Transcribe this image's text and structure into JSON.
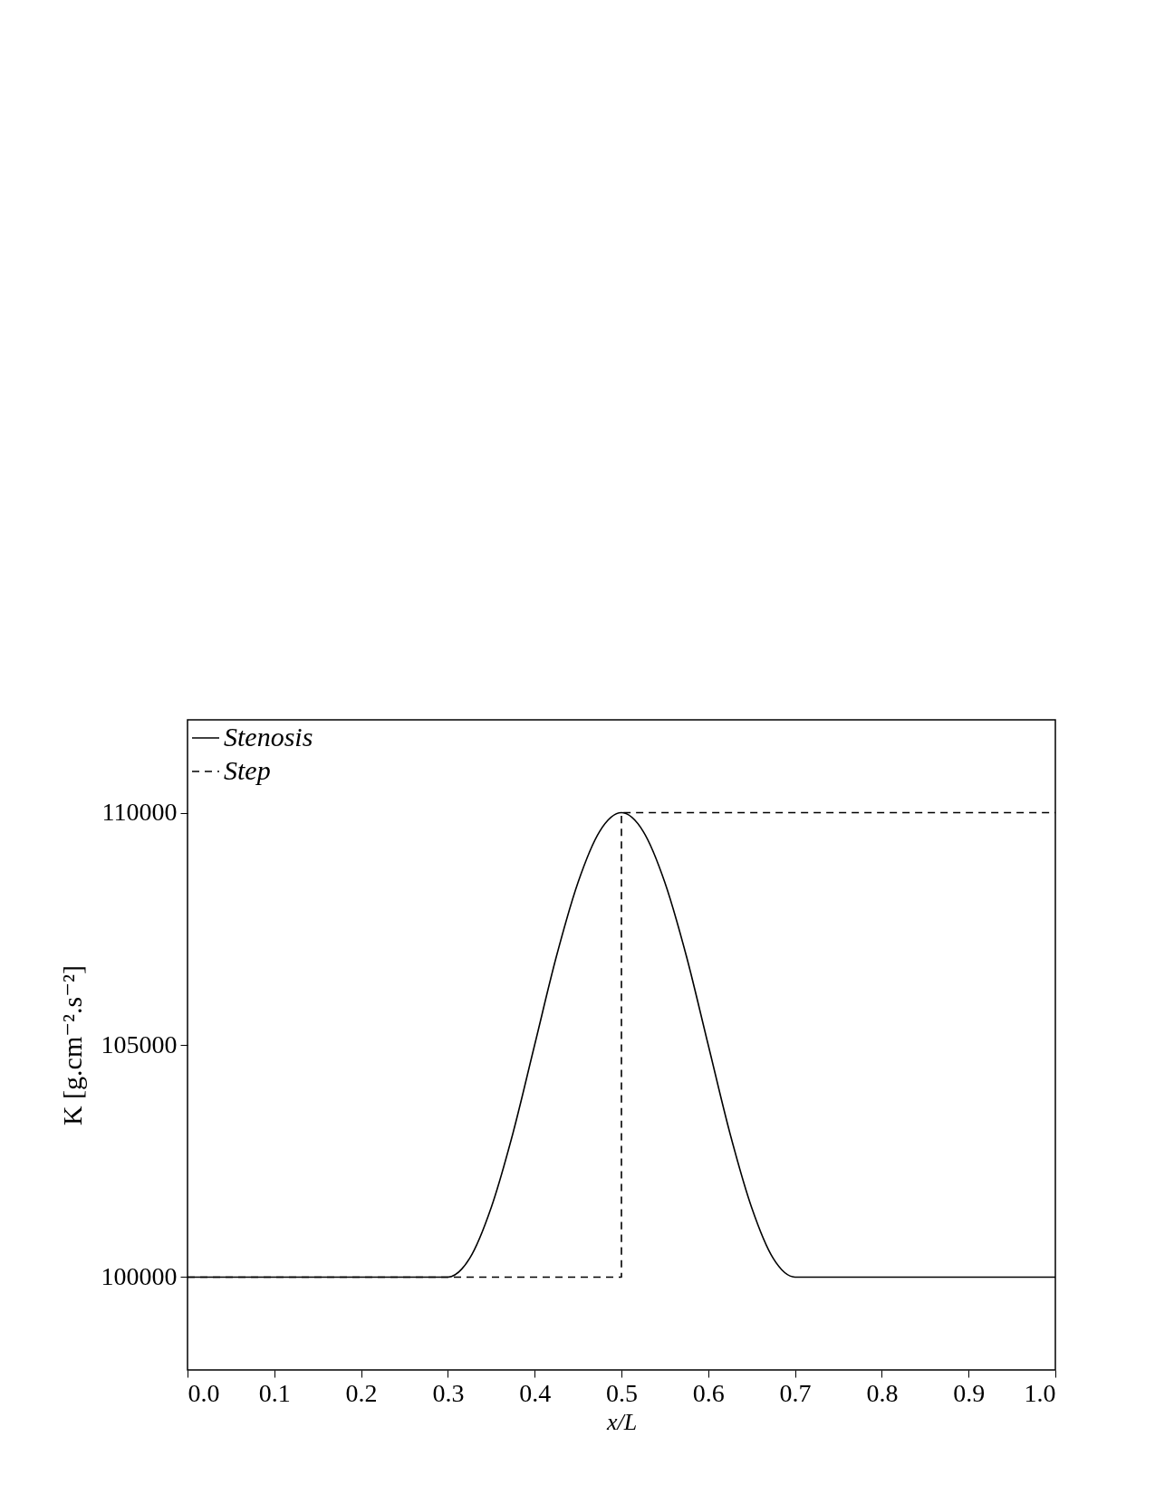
{
  "chart_data": {
    "type": "line",
    "xlabel": "x/L",
    "ylabel": "K [g.cm⁻².s⁻²]",
    "xlim": [
      0,
      1
    ],
    "xticks": [
      {
        "value": 0,
        "label": "0.0"
      },
      0.1,
      0.2,
      0.3,
      0.4,
      0.5,
      0.6,
      0.7,
      0.8,
      0.9,
      {
        "value": 1,
        "label": "1.0"
      }
    ],
    "ylim": [
      98000,
      112000
    ],
    "yticks": [
      100000,
      105000,
      110000
    ],
    "grid": false,
    "legend": "top left",
    "series": [
      {
        "name": "Stenosis",
        "color": "#000000",
        "line_style": "solid",
        "x": [
          0,
          0.3,
          0.325,
          0.35,
          0.375,
          0.4,
          0.425,
          0.45,
          0.475,
          0.5,
          0.525,
          0.55,
          0.575,
          0.6,
          0.625,
          0.65,
          0.675,
          0.7,
          1
        ],
        "values": [
          100000,
          100000,
          100400,
          101500,
          103100,
          105000,
          106900,
          108500,
          109600,
          110000,
          109600,
          108500,
          106900,
          105000,
          103100,
          101500,
          100400,
          100000,
          100000
        ]
      },
      {
        "name": "Step",
        "color": "#000000",
        "line_style": "dashed",
        "x": [
          0,
          0.5,
          0.5,
          1
        ],
        "values": [
          100000,
          100000,
          110000,
          110000
        ]
      }
    ]
  }
}
